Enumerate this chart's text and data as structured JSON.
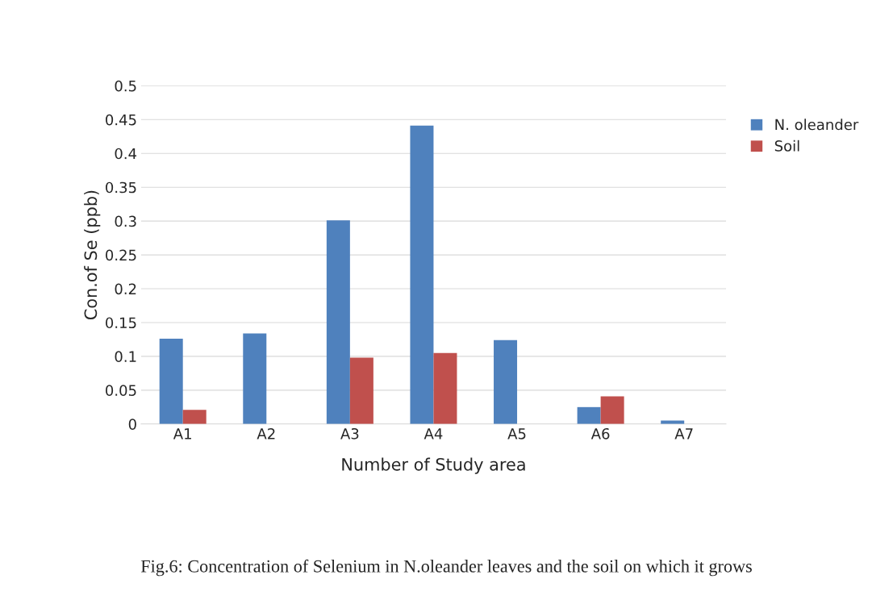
{
  "chart_data": {
    "type": "bar",
    "xlabel": "Number of Study area",
    "ylabel": "Con.of Se (ppb)",
    "categories": [
      "A1",
      "A2",
      "A3",
      "A4",
      "A5",
      "A6",
      "A7"
    ],
    "series": [
      {
        "name": "N. oleander",
        "color": "#4f81bd",
        "values": [
          0.126,
          0.134,
          0.301,
          0.441,
          0.124,
          0.025,
          0.005
        ]
      },
      {
        "name": "Soil",
        "color": "#c0504d",
        "values": [
          0.021,
          null,
          0.098,
          0.105,
          null,
          0.041,
          null
        ]
      }
    ],
    "ylim": [
      0,
      0.5
    ],
    "yticks": [
      0,
      0.05,
      0.1,
      0.15,
      0.2,
      0.25,
      0.3,
      0.35,
      0.4,
      0.45,
      0.5
    ],
    "grid": "y",
    "legend": "right",
    "annotations": [
      "Fig.6: Concentration of Selenium in N.oleander leaves and the soil on which it grows"
    ]
  }
}
